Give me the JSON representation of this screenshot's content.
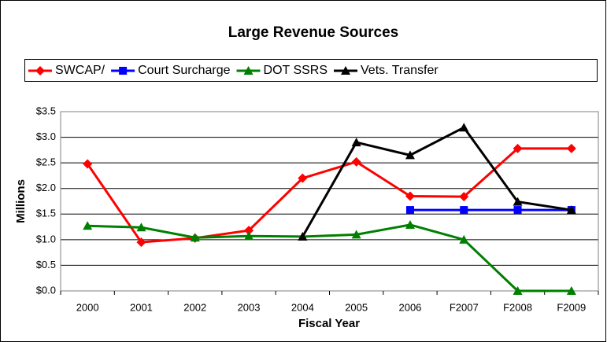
{
  "chart_data": {
    "type": "line",
    "title": "Large Revenue Sources",
    "x_label": "Fiscal Year",
    "y_label": "Millions",
    "categories": [
      "2000",
      "2001",
      "2002",
      "2003",
      "2004",
      "2005",
      "2006",
      "F2007",
      "F2008",
      "F2009"
    ],
    "series": [
      {
        "name": "SWCAP/",
        "color": "#ff0000",
        "marker": "diamond",
        "values": [
          2.48,
          0.95,
          1.03,
          1.18,
          2.2,
          2.52,
          1.85,
          1.84,
          2.78,
          2.78
        ]
      },
      {
        "name": "Court Surcharge",
        "color": "#0000ff",
        "marker": "square",
        "values": [
          null,
          null,
          null,
          null,
          null,
          null,
          1.58,
          1.58,
          1.58,
          1.58
        ]
      },
      {
        "name": "DOT SSRS",
        "color": "#008000",
        "marker": "triangle",
        "values": [
          1.27,
          1.24,
          1.04,
          1.07,
          1.06,
          1.1,
          1.29,
          1.0,
          0.0,
          0.0
        ]
      },
      {
        "name": "Vets. Transfer",
        "color": "#000000",
        "marker": "triangle",
        "values": [
          null,
          null,
          null,
          null,
          1.06,
          2.9,
          2.65,
          3.19,
          1.74,
          1.58
        ]
      }
    ],
    "ylim": [
      0,
      3.5
    ],
    "yticks": [
      {
        "value": 0,
        "label": "$0.0"
      },
      {
        "value": 0.5,
        "label": "$0.5"
      },
      {
        "value": 1,
        "label": "$1.0"
      },
      {
        "value": 1.5,
        "label": "$1.5"
      },
      {
        "value": 2,
        "label": "$2.0"
      },
      {
        "value": 2.5,
        "label": "$2.5"
      },
      {
        "value": 3,
        "label": "$3.0"
      },
      {
        "value": 3.5,
        "label": "$3.5"
      }
    ],
    "grid": true
  }
}
